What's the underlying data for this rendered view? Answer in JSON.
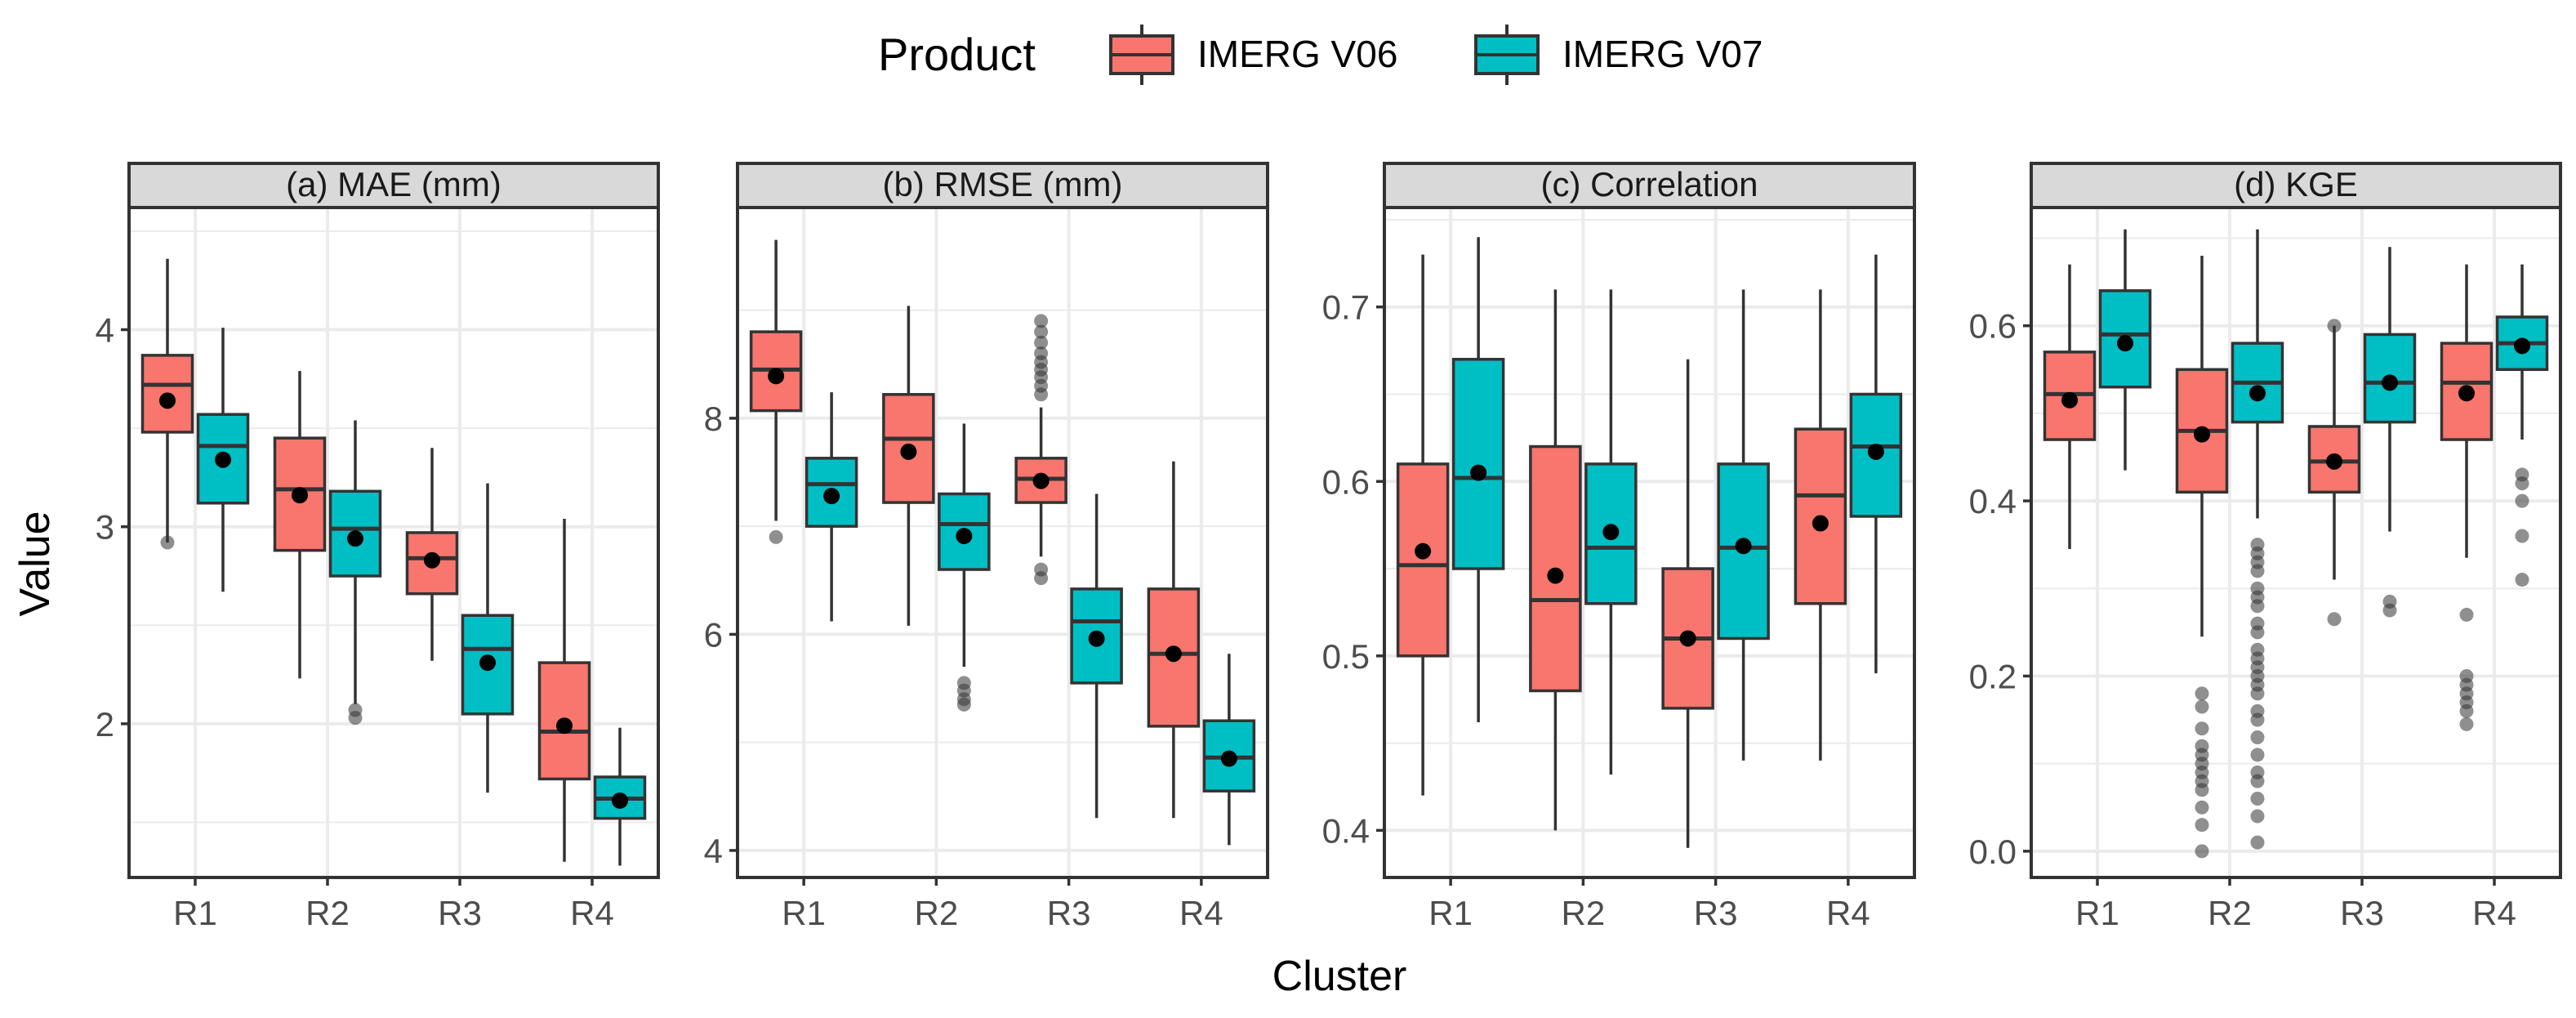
{
  "colors": {
    "v06": "#F8766D",
    "v07": "#00BFC4",
    "panel_bg": "#FFFFFF",
    "strip_bg": "#D9D9D9",
    "grid": "#EBEBEB",
    "outlier": "#333333",
    "tick_text": "#4D4D4D",
    "axis_title": "#000000"
  },
  "legend": {
    "title": "Product",
    "items": [
      {
        "key": "v06",
        "label": "IMERG V06"
      },
      {
        "key": "v07",
        "label": "IMERG V07"
      }
    ]
  },
  "axes": {
    "xlabel": "Cluster",
    "ylabel": "Value"
  },
  "chart_data": {
    "type": "boxplot",
    "categories": [
      "R1",
      "R2",
      "R3",
      "R4"
    ],
    "series_names": [
      "IMERG V06",
      "IMERG V07"
    ],
    "panels": [
      {
        "title": "(a) MAE (mm)",
        "ylim": [
          1.22,
          4.62
        ],
        "yticks": [
          2,
          3,
          4
        ],
        "yticklabels": [
          "2",
          "3",
          "4"
        ],
        "boxes": [
          {
            "cat": "R1",
            "series": "v06",
            "lw": 2.92,
            "q1": 3.48,
            "med": 3.72,
            "q3": 3.87,
            "uw": 4.36,
            "mean": 3.64,
            "out": [
              2.92
            ]
          },
          {
            "cat": "R1",
            "series": "v07",
            "lw": 2.67,
            "q1": 3.12,
            "med": 3.41,
            "q3": 3.57,
            "uw": 4.01,
            "mean": 3.34,
            "out": []
          },
          {
            "cat": "R2",
            "series": "v06",
            "lw": 2.23,
            "q1": 2.88,
            "med": 3.19,
            "q3": 3.45,
            "uw": 3.79,
            "mean": 3.16,
            "out": []
          },
          {
            "cat": "R2",
            "series": "v07",
            "lw": 2.1,
            "q1": 2.75,
            "med": 2.99,
            "q3": 3.18,
            "uw": 3.54,
            "mean": 2.94,
            "out": [
              2.07,
              2.03
            ]
          },
          {
            "cat": "R3",
            "series": "v06",
            "lw": 2.32,
            "q1": 2.66,
            "med": 2.84,
            "q3": 2.97,
            "uw": 3.4,
            "mean": 2.83,
            "out": []
          },
          {
            "cat": "R3",
            "series": "v07",
            "lw": 1.65,
            "q1": 2.05,
            "med": 2.38,
            "q3": 2.55,
            "uw": 3.22,
            "mean": 2.31,
            "out": []
          },
          {
            "cat": "R4",
            "series": "v06",
            "lw": 1.3,
            "q1": 1.72,
            "med": 1.96,
            "q3": 2.31,
            "uw": 3.04,
            "mean": 1.99,
            "out": []
          },
          {
            "cat": "R4",
            "series": "v07",
            "lw": 1.28,
            "q1": 1.52,
            "med": 1.62,
            "q3": 1.73,
            "uw": 1.98,
            "mean": 1.61,
            "out": []
          }
        ]
      },
      {
        "title": "(b) RMSE (mm)",
        "ylim": [
          3.75,
          9.95
        ],
        "yticks": [
          4,
          6,
          8
        ],
        "yticklabels": [
          "4",
          "6",
          "8"
        ],
        "boxes": [
          {
            "cat": "R1",
            "series": "v06",
            "lw": 7.05,
            "q1": 8.07,
            "med": 8.45,
            "q3": 8.8,
            "uw": 9.65,
            "mean": 8.39,
            "out": [
              6.9
            ]
          },
          {
            "cat": "R1",
            "series": "v07",
            "lw": 6.12,
            "q1": 7.0,
            "med": 7.39,
            "q3": 7.63,
            "uw": 8.24,
            "mean": 7.28,
            "out": []
          },
          {
            "cat": "R2",
            "series": "v06",
            "lw": 6.08,
            "q1": 7.22,
            "med": 7.81,
            "q3": 8.22,
            "uw": 9.04,
            "mean": 7.69,
            "out": []
          },
          {
            "cat": "R2",
            "series": "v07",
            "lw": 5.7,
            "q1": 6.6,
            "med": 7.02,
            "q3": 7.3,
            "uw": 7.95,
            "mean": 6.91,
            "out": [
              5.55,
              5.48,
              5.4,
              5.35
            ]
          },
          {
            "cat": "R3",
            "series": "v06",
            "lw": 6.72,
            "q1": 7.22,
            "med": 7.44,
            "q3": 7.63,
            "uw": 8.1,
            "mean": 7.42,
            "out": [
              8.9,
              8.8,
              8.7,
              8.6,
              8.52,
              8.45,
              8.38,
              8.3,
              8.22,
              6.6,
              6.52
            ]
          },
          {
            "cat": "R3",
            "series": "v07",
            "lw": 4.3,
            "q1": 5.55,
            "med": 6.12,
            "q3": 6.42,
            "uw": 7.3,
            "mean": 5.96,
            "out": []
          },
          {
            "cat": "R4",
            "series": "v06",
            "lw": 4.3,
            "q1": 5.15,
            "med": 5.82,
            "q3": 6.42,
            "uw": 7.6,
            "mean": 5.82,
            "out": []
          },
          {
            "cat": "R4",
            "series": "v07",
            "lw": 4.05,
            "q1": 4.55,
            "med": 4.86,
            "q3": 5.2,
            "uw": 5.82,
            "mean": 4.85,
            "out": []
          }
        ]
      },
      {
        "title": "(c) Correlation",
        "ylim": [
          0.373,
          0.757
        ],
        "yticks": [
          0.4,
          0.5,
          0.6,
          0.7
        ],
        "yticklabels": [
          "0.4",
          "0.5",
          "0.6",
          "0.7"
        ],
        "boxes": [
          {
            "cat": "R1",
            "series": "v06",
            "lw": 0.42,
            "q1": 0.5,
            "med": 0.552,
            "q3": 0.61,
            "uw": 0.73,
            "mean": 0.56,
            "out": []
          },
          {
            "cat": "R1",
            "series": "v07",
            "lw": 0.462,
            "q1": 0.55,
            "med": 0.602,
            "q3": 0.67,
            "uw": 0.74,
            "mean": 0.605,
            "out": []
          },
          {
            "cat": "R2",
            "series": "v06",
            "lw": 0.4,
            "q1": 0.48,
            "med": 0.532,
            "q3": 0.62,
            "uw": 0.71,
            "mean": 0.546,
            "out": []
          },
          {
            "cat": "R2",
            "series": "v07",
            "lw": 0.432,
            "q1": 0.53,
            "med": 0.562,
            "q3": 0.61,
            "uw": 0.71,
            "mean": 0.571,
            "out": []
          },
          {
            "cat": "R3",
            "series": "v06",
            "lw": 0.39,
            "q1": 0.47,
            "med": 0.51,
            "q3": 0.55,
            "uw": 0.67,
            "mean": 0.51,
            "out": []
          },
          {
            "cat": "R3",
            "series": "v07",
            "lw": 0.44,
            "q1": 0.51,
            "med": 0.562,
            "q3": 0.61,
            "uw": 0.71,
            "mean": 0.563,
            "out": []
          },
          {
            "cat": "R4",
            "series": "v06",
            "lw": 0.44,
            "q1": 0.53,
            "med": 0.592,
            "q3": 0.63,
            "uw": 0.71,
            "mean": 0.576,
            "out": []
          },
          {
            "cat": "R4",
            "series": "v07",
            "lw": 0.49,
            "q1": 0.58,
            "med": 0.62,
            "q3": 0.65,
            "uw": 0.73,
            "mean": 0.617,
            "out": []
          }
        ]
      },
      {
        "title": "(d) KGE",
        "ylim": [
          -0.03,
          0.735
        ],
        "yticks": [
          0.0,
          0.2,
          0.4,
          0.6
        ],
        "yticklabels": [
          "0.0",
          "0.2",
          "0.4",
          "0.6"
        ],
        "boxes": [
          {
            "cat": "R1",
            "series": "v06",
            "lw": 0.345,
            "q1": 0.47,
            "med": 0.522,
            "q3": 0.57,
            "uw": 0.67,
            "mean": 0.515,
            "out": []
          },
          {
            "cat": "R1",
            "series": "v07",
            "lw": 0.435,
            "q1": 0.53,
            "med": 0.59,
            "q3": 0.64,
            "uw": 0.71,
            "mean": 0.58,
            "out": []
          },
          {
            "cat": "R2",
            "series": "v06",
            "lw": 0.245,
            "q1": 0.41,
            "med": 0.48,
            "q3": 0.55,
            "uw": 0.68,
            "mean": 0.476,
            "out": [
              0.18,
              0.165,
              0.14,
              0.12,
              0.11,
              0.1,
              0.09,
              0.08,
              0.07,
              0.05,
              0.03,
              0.0
            ]
          },
          {
            "cat": "R2",
            "series": "v07",
            "lw": 0.38,
            "q1": 0.49,
            "med": 0.535,
            "q3": 0.58,
            "uw": 0.71,
            "mean": 0.523,
            "out": [
              0.35,
              0.34,
              0.33,
              0.32,
              0.3,
              0.29,
              0.28,
              0.26,
              0.25,
              0.23,
              0.22,
              0.21,
              0.2,
              0.19,
              0.18,
              0.16,
              0.15,
              0.13,
              0.11,
              0.09,
              0.08,
              0.06,
              0.04,
              0.01
            ]
          },
          {
            "cat": "R3",
            "series": "v06",
            "lw": 0.31,
            "q1": 0.41,
            "med": 0.445,
            "q3": 0.485,
            "uw": 0.6,
            "mean": 0.445,
            "out": [
              0.6,
              0.265
            ]
          },
          {
            "cat": "R3",
            "series": "v07",
            "lw": 0.365,
            "q1": 0.49,
            "med": 0.535,
            "q3": 0.59,
            "uw": 0.69,
            "mean": 0.535,
            "out": [
              0.285,
              0.275
            ]
          },
          {
            "cat": "R4",
            "series": "v06",
            "lw": 0.335,
            "q1": 0.47,
            "med": 0.535,
            "q3": 0.58,
            "uw": 0.67,
            "mean": 0.523,
            "out": [
              0.27,
              0.2,
              0.19,
              0.18,
              0.17,
              0.16,
              0.145
            ]
          },
          {
            "cat": "R4",
            "series": "v07",
            "lw": 0.47,
            "q1": 0.55,
            "med": 0.58,
            "q3": 0.61,
            "uw": 0.67,
            "mean": 0.577,
            "out": [
              0.43,
              0.42,
              0.4,
              0.36,
              0.31
            ]
          }
        ]
      }
    ]
  }
}
